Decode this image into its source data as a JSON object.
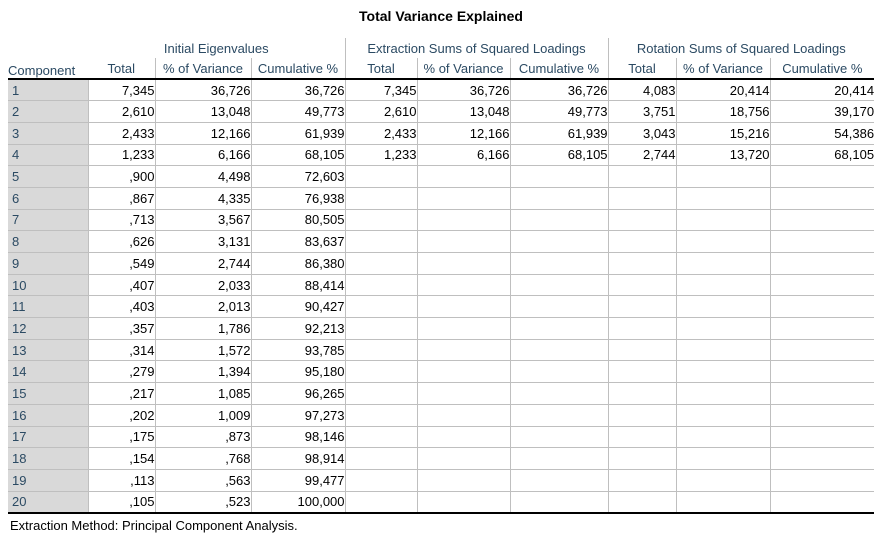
{
  "title": "Total Variance Explained",
  "table": {
    "row_header": "Component",
    "groups": [
      {
        "label": "Initial Eigenvalues",
        "columns": [
          "Total",
          "% of Variance",
          "Cumulative %"
        ]
      },
      {
        "label": "Extraction Sums of Squared Loadings",
        "columns": [
          "Total",
          "% of Variance",
          "Cumulative %"
        ]
      },
      {
        "label": "Rotation Sums of Squared Loadings",
        "columns": [
          "Total",
          "% of Variance",
          "Cumulative %"
        ]
      }
    ],
    "rows": [
      {
        "component": "1",
        "values": [
          "7,345",
          "36,726",
          "36,726",
          "7,345",
          "36,726",
          "36,726",
          "4,083",
          "20,414",
          "20,414"
        ]
      },
      {
        "component": "2",
        "values": [
          "2,610",
          "13,048",
          "49,773",
          "2,610",
          "13,048",
          "49,773",
          "3,751",
          "18,756",
          "39,170"
        ]
      },
      {
        "component": "3",
        "values": [
          "2,433",
          "12,166",
          "61,939",
          "2,433",
          "12,166",
          "61,939",
          "3,043",
          "15,216",
          "54,386"
        ]
      },
      {
        "component": "4",
        "values": [
          "1,233",
          "6,166",
          "68,105",
          "1,233",
          "6,166",
          "68,105",
          "2,744",
          "13,720",
          "68,105"
        ]
      },
      {
        "component": "5",
        "values": [
          ",900",
          "4,498",
          "72,603",
          "",
          "",
          "",
          "",
          "",
          ""
        ]
      },
      {
        "component": "6",
        "values": [
          ",867",
          "4,335",
          "76,938",
          "",
          "",
          "",
          "",
          "",
          ""
        ]
      },
      {
        "component": "7",
        "values": [
          ",713",
          "3,567",
          "80,505",
          "",
          "",
          "",
          "",
          "",
          ""
        ]
      },
      {
        "component": "8",
        "values": [
          ",626",
          "3,131",
          "83,637",
          "",
          "",
          "",
          "",
          "",
          ""
        ]
      },
      {
        "component": "9",
        "values": [
          ",549",
          "2,744",
          "86,380",
          "",
          "",
          "",
          "",
          "",
          ""
        ]
      },
      {
        "component": "10",
        "values": [
          ",407",
          "2,033",
          "88,414",
          "",
          "",
          "",
          "",
          "",
          ""
        ]
      },
      {
        "component": "11",
        "values": [
          ",403",
          "2,013",
          "90,427",
          "",
          "",
          "",
          "",
          "",
          ""
        ]
      },
      {
        "component": "12",
        "values": [
          ",357",
          "1,786",
          "92,213",
          "",
          "",
          "",
          "",
          "",
          ""
        ]
      },
      {
        "component": "13",
        "values": [
          ",314",
          "1,572",
          "93,785",
          "",
          "",
          "",
          "",
          "",
          ""
        ]
      },
      {
        "component": "14",
        "values": [
          ",279",
          "1,394",
          "95,180",
          "",
          "",
          "",
          "",
          "",
          ""
        ]
      },
      {
        "component": "15",
        "values": [
          ",217",
          "1,085",
          "96,265",
          "",
          "",
          "",
          "",
          "",
          ""
        ]
      },
      {
        "component": "16",
        "values": [
          ",202",
          "1,009",
          "97,273",
          "",
          "",
          "",
          "",
          "",
          ""
        ]
      },
      {
        "component": "17",
        "values": [
          ",175",
          ",873",
          "98,146",
          "",
          "",
          "",
          "",
          "",
          ""
        ]
      },
      {
        "component": "18",
        "values": [
          ",154",
          ",768",
          "98,914",
          "",
          "",
          "",
          "",
          "",
          ""
        ]
      },
      {
        "component": "19",
        "values": [
          ",113",
          ",563",
          "99,477",
          "",
          "",
          "",
          "",
          "",
          ""
        ]
      },
      {
        "component": "20",
        "values": [
          ",105",
          ",523",
          "100,000",
          "",
          "",
          "",
          "",
          "",
          ""
        ]
      }
    ],
    "footer": "Extraction Method: Principal Component Analysis."
  },
  "colors": {
    "header_text": "#2b4a63",
    "label_background": "#d9d9d9",
    "gridline": "#bfbfbf",
    "strong_border": "#000000",
    "background": "#ffffff"
  }
}
